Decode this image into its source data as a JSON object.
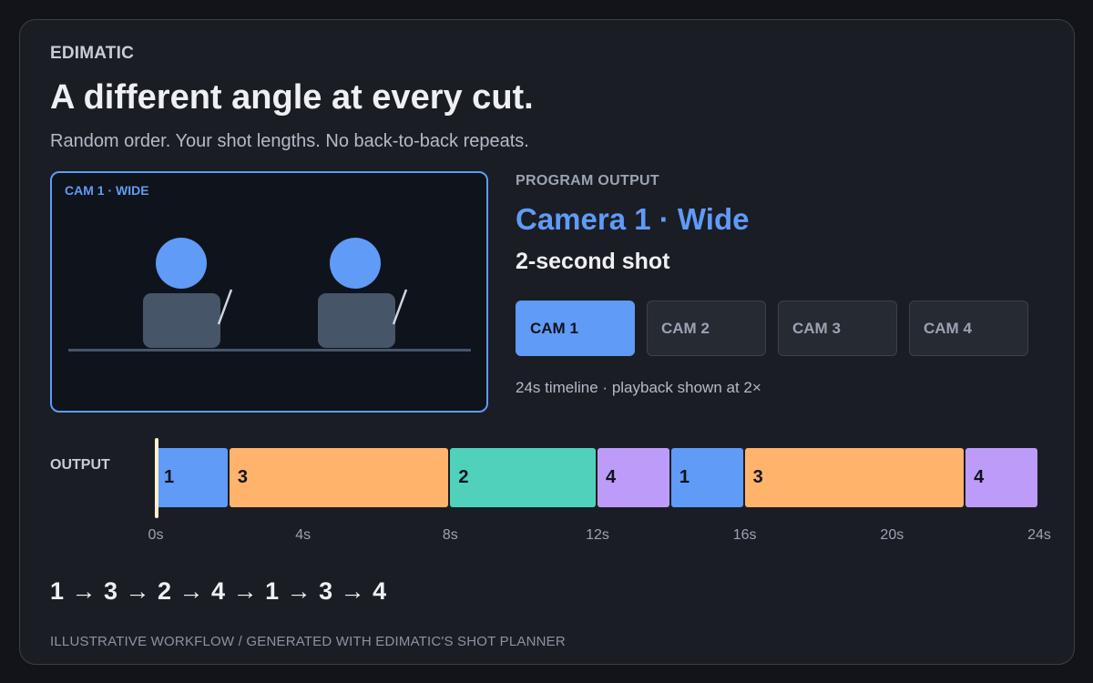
{
  "brand": "EDIMATIC",
  "headline": "A different angle at every cut.",
  "subhead": "Random order. Your shot lengths. No back-to-back repeats.",
  "preview": {
    "label": "CAM 1 · WIDE",
    "border_color": "#5f9bf7"
  },
  "program_output": {
    "label": "PROGRAM OUTPUT",
    "camera": "Camera 1 · Wide",
    "shot": "2-second shot"
  },
  "camera_buttons": [
    {
      "label": "CAM 1",
      "active": true
    },
    {
      "label": "CAM 2",
      "active": false
    },
    {
      "label": "CAM 3",
      "active": false
    },
    {
      "label": "CAM 4",
      "active": false
    }
  ],
  "timeline_note": "24s timeline · playback shown at 2×",
  "output_label": "OUTPUT",
  "timeline": {
    "total_seconds": 24,
    "playhead_seconds": 0,
    "segments": [
      {
        "label": "1",
        "start": 0,
        "end": 2
      },
      {
        "label": "3",
        "start": 2,
        "end": 8
      },
      {
        "label": "2",
        "start": 8,
        "end": 12
      },
      {
        "label": "4",
        "start": 12,
        "end": 14
      },
      {
        "label": "1",
        "start": 14,
        "end": 16
      },
      {
        "label": "3",
        "start": 16,
        "end": 22
      },
      {
        "label": "4",
        "start": 22,
        "end": 24
      }
    ],
    "ticks": [
      {
        "label": "0s",
        "value": 0
      },
      {
        "label": "4s",
        "value": 4
      },
      {
        "label": "8s",
        "value": 8
      },
      {
        "label": "12s",
        "value": 12
      },
      {
        "label": "16s",
        "value": 16
      },
      {
        "label": "20s",
        "value": 20
      },
      {
        "label": "24s",
        "value": 24
      }
    ]
  },
  "camera_colors": {
    "1": "#5f9bf7",
    "2": "#4fd1bb",
    "3": "#ffb36b",
    "4": "#bd9cf9"
  },
  "sequence": "1 → 3 → 2 → 4 → 1 → 3 → 4",
  "footer": "ILLUSTRATIVE WORKFLOW  /  GENERATED WITH EDIMATIC'S SHOT PLANNER"
}
